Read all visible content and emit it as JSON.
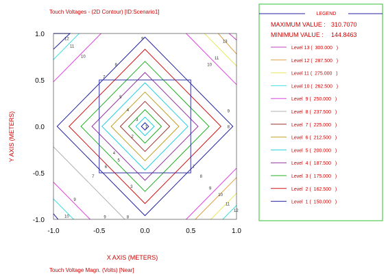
{
  "chart_data": {
    "type": "contour",
    "title": "Touch Voltages - (2D Contour) [ID:Scenario1]",
    "xlabel": "X AXIS  (METERS)",
    "ylabel": "Y AXIS  (METERS)",
    "footer": "Touch Voltage Magn. (Volts) [Near]",
    "xlim": [
      -1.0,
      1.0
    ],
    "ylim": [
      -1.0,
      1.0
    ],
    "x_ticks": [
      "-1.0",
      "-0.5",
      "0.0",
      "0.5",
      "1.0"
    ],
    "y_ticks": [
      "1.0",
      "0.5",
      "0.0",
      "-0.5",
      "-1.0"
    ],
    "grid_square": {
      "x": [
        -0.5,
        0.5
      ],
      "y": [
        -0.5,
        0.5
      ]
    },
    "legend": {
      "title": "LEGEND",
      "max_label": "MAXIMUM VALUE :",
      "max_value": "310.7070",
      "min_label": "MINIMUM VALUE :",
      "min_value": "144.8463",
      "levels": [
        {
          "label": "Level 13 (  300.000   )",
          "value": 300.0,
          "color": "#c040c0"
        },
        {
          "label": "Level 12 (  287.500   )",
          "value": 287.5,
          "color": "#e0a040"
        },
        {
          "label": "Level 11 (  275.000   )",
          "value": 275.0,
          "color": "#e8e860"
        },
        {
          "label": "Level 10 (  262.500   )",
          "value": 262.5,
          "color": "#40e0e0"
        },
        {
          "label": "Level  9 (  250.000   )",
          "value": 250.0,
          "color": "#e040e0"
        },
        {
          "label": "Level  8 (  237.500   )",
          "value": 237.5,
          "color": "#b0b0b0"
        },
        {
          "label": "Level  7 (  225.000   )",
          "value": 225.0,
          "color": "#a03030"
        },
        {
          "label": "Level  6 (  212.500   )",
          "value": 212.5,
          "color": "#c0a020"
        },
        {
          "label": "Level  5 (  200.000   )",
          "value": 200.0,
          "color": "#20d0e0"
        },
        {
          "label": "Level  4 (  187.500   )",
          "value": 187.5,
          "color": "#9030a0"
        },
        {
          "label": "Level  3 (  175.000   )",
          "value": 175.0,
          "color": "#20b020"
        },
        {
          "label": "Level  2 (  162.500   )",
          "value": 162.5,
          "color": "#d01010"
        },
        {
          "label": "Level  1 (  150.000   )",
          "value": 150.0,
          "color": "#2020a0"
        }
      ]
    },
    "contours": [
      {
        "level": 1,
        "points": [
          [
            -1.0,
            0.83
          ],
          [
            -0.82,
            1.0
          ],
          [
            -1.0,
            1.0
          ]
        ]
      },
      {
        "level": 13,
        "points": [
          [
            0.92,
            1.0
          ],
          [
            1.0,
            0.93
          ]
        ]
      },
      {
        "level": 12,
        "points": [
          [
            0.8,
            1.0
          ],
          [
            1.0,
            0.78
          ]
        ]
      },
      {
        "level": 11,
        "points": [
          [
            0.65,
            1.0
          ],
          [
            1.0,
            0.65
          ]
        ]
      },
      {
        "level": 10,
        "points": [
          [
            -0.72,
            1.0
          ],
          [
            -1.0,
            0.72
          ]
        ]
      },
      {
        "level": 9,
        "points": [
          [
            -1.0,
            0.48
          ],
          [
            -0.48,
            1.0
          ]
        ]
      },
      {
        "level": 1,
        "points": [
          [
            -0.95,
            -1.0
          ],
          [
            -1.0,
            -0.94
          ]
        ]
      },
      {
        "level": 10,
        "points": [
          [
            -0.78,
            -1.0
          ],
          [
            -1.0,
            -0.78
          ]
        ]
      },
      {
        "level": 9,
        "points": [
          [
            -1.0,
            -0.6
          ],
          [
            -0.6,
            -1.0
          ]
        ]
      },
      {
        "level": 8,
        "points": [
          [
            -0.22,
            -1.0
          ],
          [
            -1.0,
            -0.22
          ]
        ]
      },
      {
        "level": 10,
        "points": [
          [
            0.85,
            -1.0
          ],
          [
            1.0,
            -0.85
          ]
        ]
      },
      {
        "level": 11,
        "points": [
          [
            0.72,
            -1.0
          ],
          [
            1.0,
            -0.72
          ]
        ]
      },
      {
        "level": 12,
        "points": [
          [
            1.0,
            -0.55
          ],
          [
            0.55,
            -1.0
          ]
        ]
      },
      {
        "level": 9,
        "points": [
          [
            0.45,
            1.0
          ],
          [
            1.0,
            0.45
          ]
        ]
      },
      {
        "level": 9,
        "points": [
          [
            0.45,
            -1.0
          ],
          [
            1.0,
            -0.45
          ]
        ]
      },
      {
        "level": 1,
        "points": [
          [
            0.0,
            0.96
          ],
          [
            0.96,
            0.0
          ],
          [
            0.0,
            -0.96
          ],
          [
            -0.96,
            0.0
          ]
        ],
        "closed": true
      },
      {
        "level": 2,
        "points": [
          [
            0.0,
            0.83
          ],
          [
            0.83,
            0.0
          ],
          [
            0.0,
            -0.83
          ],
          [
            -0.83,
            0.0
          ]
        ],
        "closed": true
      },
      {
        "level": 3,
        "points": [
          [
            0.0,
            0.7
          ],
          [
            0.7,
            0.0
          ],
          [
            0.0,
            -0.7
          ],
          [
            -0.7,
            0.0
          ]
        ],
        "closed": true
      },
      {
        "level": 4,
        "points": [
          [
            0.0,
            0.58
          ],
          [
            0.58,
            0.0
          ],
          [
            0.0,
            -0.58
          ],
          [
            -0.58,
            0.0
          ]
        ],
        "closed": true
      },
      {
        "level": 5,
        "points": [
          [
            0.0,
            0.47
          ],
          [
            0.47,
            0.0
          ],
          [
            0.0,
            -0.47
          ],
          [
            -0.47,
            0.0
          ]
        ],
        "closed": true
      },
      {
        "level": 6,
        "points": [
          [
            0.0,
            0.37
          ],
          [
            0.37,
            0.0
          ],
          [
            0.0,
            -0.37
          ],
          [
            -0.37,
            0.0
          ]
        ],
        "closed": true
      },
      {
        "level": 7,
        "points": [
          [
            0.0,
            0.27
          ],
          [
            0.27,
            0.0
          ],
          [
            0.0,
            -0.27
          ],
          [
            -0.27,
            0.0
          ]
        ],
        "closed": true
      },
      {
        "level": 3,
        "points": [
          [
            0.0,
            0.18
          ],
          [
            0.18,
            0.0
          ],
          [
            0.0,
            -0.18
          ],
          [
            -0.18,
            0.0
          ]
        ],
        "closed": true
      },
      {
        "level": 5,
        "points": [
          [
            0.0,
            0.1
          ],
          [
            0.1,
            0.0
          ],
          [
            0.0,
            -0.1
          ],
          [
            -0.1,
            0.0
          ]
        ],
        "closed": true
      },
      {
        "level": 1,
        "points": [
          [
            0.0,
            0.04
          ],
          [
            0.04,
            0.0
          ],
          [
            0.0,
            -0.04
          ],
          [
            -0.04,
            0.0
          ]
        ],
        "closed": true
      }
    ],
    "contour_labels": [
      {
        "text": "12",
        "x": -0.88,
        "y": 0.93,
        "level": 12
      },
      {
        "text": "11",
        "x": -0.82,
        "y": 0.85,
        "level": 11
      },
      {
        "text": "10",
        "x": -0.7,
        "y": 0.74,
        "level": 10
      },
      {
        "text": "9",
        "x": -0.04,
        "y": 0.93,
        "level": 9
      },
      {
        "text": "8",
        "x": -0.33,
        "y": 0.65,
        "level": 8
      },
      {
        "text": "7",
        "x": -0.46,
        "y": 0.52,
        "level": 7
      },
      {
        "text": "5",
        "x": -0.28,
        "y": 0.3,
        "level": 5
      },
      {
        "text": "4",
        "x": -0.2,
        "y": 0.16,
        "level": 4
      },
      {
        "text": "3",
        "x": -0.1,
        "y": 0.06,
        "level": 3
      },
      {
        "text": "2",
        "x": -0.15,
        "y": -0.12,
        "level": 2
      },
      {
        "text": "13",
        "x": 0.85,
        "y": 0.9,
        "level": 13
      },
      {
        "text": "11",
        "x": 0.76,
        "y": 0.72,
        "level": 11
      },
      {
        "text": "10",
        "x": 0.68,
        "y": 0.65,
        "level": 10
      },
      {
        "text": "9",
        "x": 0.9,
        "y": 0.15,
        "level": 9
      },
      {
        "text": "8",
        "x": 0.9,
        "y": -0.02,
        "level": 8
      },
      {
        "text": "7",
        "x": 0.52,
        "y": -0.45,
        "level": 7
      },
      {
        "text": "8",
        "x": 0.6,
        "y": -0.55,
        "level": 8
      },
      {
        "text": "6",
        "x": -0.44,
        "y": -0.45,
        "level": 6
      },
      {
        "text": "7",
        "x": -0.58,
        "y": -0.55,
        "level": 7
      },
      {
        "text": "5",
        "x": -0.3,
        "y": -0.38,
        "level": 5
      },
      {
        "text": "4",
        "x": -0.35,
        "y": -0.3,
        "level": 4
      },
      {
        "text": "3",
        "x": -0.16,
        "y": -0.66,
        "level": 3
      },
      {
        "text": "9",
        "x": -0.78,
        "y": -0.8,
        "level": 9
      },
      {
        "text": "10",
        "x": -0.88,
        "y": -0.98,
        "level": 10
      },
      {
        "text": "8",
        "x": -0.2,
        "y": -0.99,
        "level": 8
      },
      {
        "text": "9",
        "x": -0.45,
        "y": -0.99,
        "level": 9
      },
      {
        "text": "9",
        "x": 0.7,
        "y": -0.68,
        "level": 9
      },
      {
        "text": "10",
        "x": 0.8,
        "y": -0.75,
        "level": 10
      },
      {
        "text": "11",
        "x": 0.88,
        "y": -0.85,
        "level": 11
      },
      {
        "text": "12",
        "x": 0.97,
        "y": -0.92,
        "level": 12
      },
      {
        "text": "1",
        "x": 0.0,
        "y": -0.02,
        "level": 1
      }
    ]
  }
}
